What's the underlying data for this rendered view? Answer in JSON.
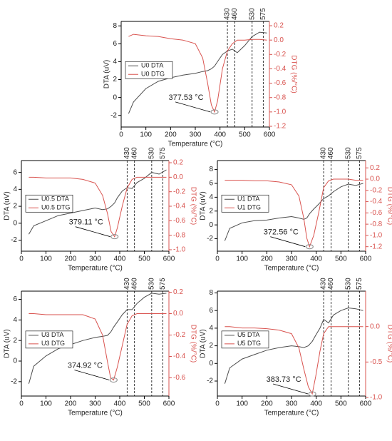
{
  "chart_data": [
    {
      "type": "line",
      "xlabel": "Temperature (°C)",
      "ylabel": "DTA (uV)",
      "y2label": "DTG (%/°C)",
      "x": [
        30,
        50,
        100,
        150,
        200,
        250,
        300,
        330,
        350,
        365,
        378,
        390,
        410,
        430,
        450,
        470,
        500,
        530,
        560,
        590
      ],
      "series": [
        {
          "name": "U0 DTA",
          "color": "#4d4d4d",
          "values": [
            -1.8,
            -0.5,
            1.0,
            1.8,
            2.2,
            2.5,
            2.7,
            2.9,
            3.0,
            3.2,
            3.5,
            4.0,
            4.8,
            5.2,
            5.4,
            5.0,
            5.8,
            6.8,
            7.3,
            7.2
          ]
        },
        {
          "name": "U0 DTG",
          "color": "#d9534f",
          "axis": "y2",
          "values": [
            0.05,
            0.08,
            0.06,
            0.05,
            0.02,
            0.0,
            -0.05,
            -0.25,
            -0.6,
            -0.9,
            -1.0,
            -0.85,
            -0.4,
            -0.15,
            -0.05,
            0.0,
            0.0,
            0.01,
            0.01,
            0.0
          ]
        }
      ],
      "xlim": [
        0,
        600
      ],
      "xticks": [
        0,
        100,
        200,
        300,
        400,
        500,
        600
      ],
      "ylim": [
        -3.3,
        8.5
      ],
      "yticks": [
        -2,
        0,
        2,
        4,
        6,
        8
      ],
      "y2lim": [
        -1.21,
        0.26
      ],
      "y2ticks": [
        0.2,
        {
          "value": 0,
          "label": "0.0"
        },
        -0.2,
        -0.4,
        -0.6,
        -0.8,
        {
          "value": -1.0,
          "label": "-1.0"
        },
        -1.2
      ],
      "vlines": [
        430,
        460,
        530,
        575
      ],
      "annotation": "377.53 °C",
      "legend": "left"
    },
    {
      "type": "line",
      "xlabel": "Temperature (°C)",
      "ylabel": "DTA (uV)",
      "y2label": "DTG (%/°C)",
      "x": [
        30,
        50,
        100,
        150,
        200,
        250,
        300,
        330,
        350,
        365,
        379,
        390,
        410,
        430,
        450,
        470,
        500,
        530,
        560,
        590
      ],
      "series": [
        {
          "name": "U0.5 DTA",
          "color": "#4d4d4d",
          "values": [
            -1.3,
            -0.3,
            0.3,
            0.9,
            1.2,
            1.5,
            1.8,
            1.6,
            1.7,
            2.0,
            2.4,
            3.0,
            3.8,
            4.2,
            4.1,
            4.8,
            5.3,
            6.0,
            5.8,
            6.3
          ]
        },
        {
          "name": "U0.5 DTG",
          "color": "#d9534f",
          "axis": "y2",
          "values": [
            0.0,
            0.0,
            -0.01,
            -0.01,
            -0.01,
            -0.03,
            -0.08,
            -0.25,
            -0.5,
            -0.75,
            -0.82,
            -0.7,
            -0.4,
            -0.15,
            -0.03,
            0.0,
            0.0,
            0.0,
            0.0,
            0.0
          ]
        }
      ],
      "xlim": [
        0,
        600
      ],
      "xticks": [
        0,
        100,
        200,
        300,
        400,
        500,
        600
      ],
      "ylim": [
        -3.3,
        7.4
      ],
      "yticks": [
        -2,
        0,
        2,
        4,
        6
      ],
      "y2lim": [
        -1.02,
        0.23
      ],
      "y2ticks": [
        0.2,
        {
          "value": 0,
          "label": "0.0"
        },
        -0.2,
        -0.4,
        -0.6,
        -0.8,
        {
          "value": -1.0,
          "label": "-1.0"
        }
      ],
      "vlines": [
        430,
        460,
        530,
        575
      ],
      "annotation": "379.11 °C",
      "legend": "left"
    },
    {
      "type": "line",
      "xlabel": "Temperature (°C)",
      "ylabel": "DTA (uV)",
      "y2label": "DTG (%/°C)",
      "x": [
        30,
        50,
        100,
        150,
        200,
        250,
        300,
        330,
        350,
        362,
        373,
        390,
        410,
        430,
        450,
        470,
        500,
        530,
        560,
        590
      ],
      "series": [
        {
          "name": "U1 DTA",
          "color": "#4d4d4d",
          "values": [
            -2.3,
            -0.5,
            0.3,
            0.6,
            0.7,
            1.0,
            1.2,
            1.0,
            0.8,
            1.0,
            1.6,
            2.3,
            3.0,
            3.8,
            4.2,
            4.8,
            5.5,
            5.9,
            5.7,
            6.0
          ]
        },
        {
          "name": "U1 DTG",
          "color": "#d9534f",
          "axis": "y2",
          "values": [
            -0.02,
            -0.02,
            -0.02,
            -0.03,
            -0.03,
            -0.05,
            -0.1,
            -0.3,
            -0.7,
            -1.05,
            -1.2,
            -1.0,
            -0.6,
            -0.15,
            -0.03,
            0.0,
            0.0,
            0.0,
            -0.02,
            -0.02
          ]
        }
      ],
      "xlim": [
        0,
        600
      ],
      "xticks": [
        0,
        100,
        200,
        300,
        400,
        500,
        600
      ],
      "ylim": [
        -3.8,
        9.3
      ],
      "yticks": [
        -2,
        0,
        2,
        4,
        6,
        8
      ],
      "y2lim": [
        -1.28,
        0.33
      ],
      "y2ticks": [
        0.2,
        {
          "value": 0,
          "label": "0.0"
        },
        -0.2,
        -0.4,
        -0.6,
        -0.8,
        {
          "value": -1.0,
          "label": "-1.0"
        },
        -1.2
      ],
      "vlines": [
        430,
        460,
        530,
        575
      ],
      "annotation": "372.56 °C",
      "legend": "left"
    },
    {
      "type": "line",
      "xlabel": "Temperature (°C)",
      "ylabel": "DTA (uV)",
      "y2label": "DTG (%/°C)",
      "x": [
        30,
        50,
        100,
        150,
        200,
        250,
        300,
        330,
        350,
        363,
        375,
        390,
        410,
        430,
        450,
        470,
        500,
        530,
        560,
        590
      ],
      "series": [
        {
          "name": "U3 DTA",
          "color": "#4d4d4d",
          "values": [
            -2.2,
            -0.5,
            0.5,
            1.2,
            1.6,
            2.0,
            2.3,
            2.4,
            2.5,
            2.8,
            3.3,
            3.8,
            4.5,
            5.0,
            5.0,
            5.6,
            6.2,
            6.6,
            6.5,
            6.6
          ]
        },
        {
          "name": "U3 DTG",
          "color": "#d9534f",
          "axis": "y2",
          "values": [
            0.0,
            0.0,
            -0.01,
            -0.01,
            -0.01,
            -0.01,
            -0.05,
            -0.2,
            -0.45,
            -0.6,
            -0.62,
            -0.5,
            -0.3,
            -0.1,
            -0.02,
            0.0,
            0.0,
            0.0,
            0.0,
            0.0
          ]
        }
      ],
      "xlim": [
        0,
        600
      ],
      "xticks": [
        0,
        100,
        200,
        300,
        400,
        500,
        600
      ],
      "ylim": [
        -3.4,
        6.8
      ],
      "yticks": [
        -2,
        0,
        2,
        4,
        6
      ],
      "y2lim": [
        -0.77,
        0.21
      ],
      "y2ticks": [
        0.2,
        {
          "value": 0,
          "label": "0.0"
        },
        -0.2,
        -0.4,
        -0.6
      ],
      "vlines": [
        430,
        460,
        530,
        575
      ],
      "annotation": "374.92 °C",
      "legend": "left"
    },
    {
      "type": "line",
      "xlabel": "Temperature (°C)",
      "ylabel": "DTA (uV)",
      "y2label": "DTG (%/°C)",
      "x": [
        30,
        50,
        100,
        150,
        200,
        250,
        300,
        330,
        350,
        368,
        384,
        398,
        415,
        430,
        450,
        470,
        500,
        530,
        560,
        590
      ],
      "series": [
        {
          "name": "U5 DTA",
          "color": "#4d4d4d",
          "values": [
            -2.3,
            -0.5,
            0.5,
            1.0,
            1.5,
            1.8,
            2.0,
            1.9,
            1.8,
            2.0,
            2.5,
            3.2,
            4.0,
            5.0,
            4.6,
            5.5,
            6.0,
            6.3,
            6.2,
            6.0
          ]
        },
        {
          "name": "U5 DTG",
          "color": "#d9534f",
          "axis": "y2",
          "values": [
            0.0,
            0.0,
            -0.02,
            -0.02,
            -0.03,
            -0.05,
            -0.1,
            -0.3,
            -0.6,
            -0.85,
            -0.95,
            -0.7,
            -0.35,
            -0.1,
            0.0,
            0.0,
            0.0,
            0.0,
            0.0,
            0.0
          ]
        }
      ],
      "xlim": [
        0,
        600
      ],
      "xticks": [
        0,
        100,
        200,
        300,
        400,
        500,
        600
      ],
      "ylim": [
        -3.7,
        8.2
      ],
      "yticks": [
        -2,
        0,
        2,
        4,
        6,
        8
      ],
      "y2lim": [
        -0.98,
        0.5
      ],
      "y2ticks": [
        {
          "value": 0,
          "label": "0.0"
        },
        -0.5,
        {
          "value": -1.0,
          "label": "-1.0"
        }
      ],
      "vlines": [
        430,
        460,
        530,
        575
      ],
      "annotation": "383.73 °C",
      "legend": "left"
    }
  ]
}
